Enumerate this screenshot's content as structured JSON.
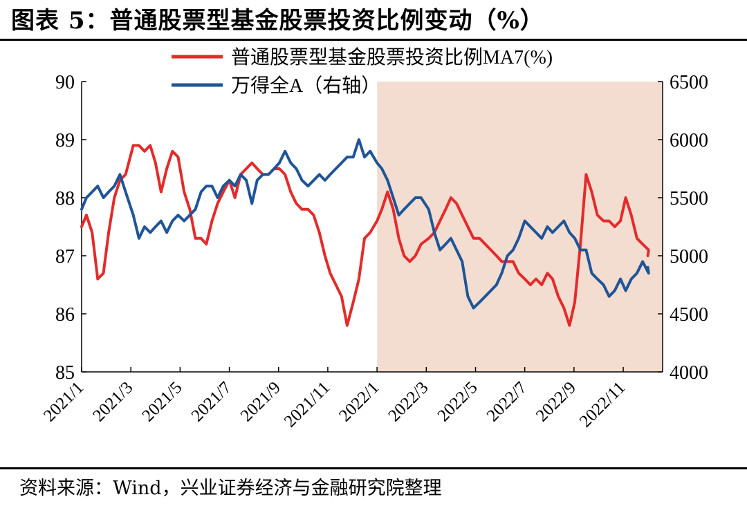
{
  "figure_title": "图表 5：普通股票型基金股票投资比例变动（%）",
  "source_note": "资料来源：Wind，兴业证券经济与金融研究院整理",
  "colors": {
    "fund_ratio": "#e32b2b",
    "wind_a": "#1f5598",
    "highlight": "#f3ddd0"
  },
  "chart_data": {
    "type": "line",
    "title": "普通股票型基金股票投资比例变动（%）",
    "x_ticks": [
      "2021/1",
      "2021/3",
      "2021/5",
      "2021/7",
      "2021/9",
      "2021/11",
      "2022/1",
      "2022/3",
      "2022/5",
      "2022/7",
      "2022/9",
      "2022/11"
    ],
    "x_range": [
      "2021/1",
      "2022/12"
    ],
    "y_left": {
      "range": [
        85,
        90
      ],
      "ticks": [
        "85",
        "86",
        "87",
        "88",
        "89",
        "90"
      ]
    },
    "y_right": {
      "range": [
        4000,
        6500
      ],
      "ticks": [
        "4000",
        "4500",
        "5000",
        "5500",
        "6000",
        "6500"
      ]
    },
    "shaded_region": {
      "from": "2022/1",
      "to": "2022/12"
    },
    "legend_position": "top-center",
    "series": [
      {
        "name": "普通股票型基金股票投资比例MA7(%)",
        "axis": "left",
        "color_key": "fund_ratio",
        "points": [
          [
            "2021/1",
            87.5
          ],
          [
            "2021/1/7",
            87.7
          ],
          [
            "2021/1/14",
            87.4
          ],
          [
            "2021/1/21",
            86.6
          ],
          [
            "2021/1/28",
            86.7
          ],
          [
            "2021/2/4",
            87.4
          ],
          [
            "2021/2/11",
            88.0
          ],
          [
            "2021/2/18",
            88.3
          ],
          [
            "2021/2/25",
            88.4
          ],
          [
            "2021/3/4",
            88.9
          ],
          [
            "2021/3/11",
            88.9
          ],
          [
            "2021/3/18",
            88.8
          ],
          [
            "2021/3/25",
            88.9
          ],
          [
            "2021/4/1",
            88.6
          ],
          [
            "2021/4/8",
            88.1
          ],
          [
            "2021/4/15",
            88.5
          ],
          [
            "2021/4/22",
            88.8
          ],
          [
            "2021/4/29",
            88.7
          ],
          [
            "2021/5/6",
            88.1
          ],
          [
            "2021/5/13",
            87.8
          ],
          [
            "2021/5/20",
            87.3
          ],
          [
            "2021/5/27",
            87.3
          ],
          [
            "2021/6/3",
            87.2
          ],
          [
            "2021/6/10",
            87.6
          ],
          [
            "2021/6/17",
            87.9
          ],
          [
            "2021/6/24",
            88.1
          ],
          [
            "2021/7/1",
            88.3
          ],
          [
            "2021/7/8",
            88.0
          ],
          [
            "2021/7/15",
            88.4
          ],
          [
            "2021/7/22",
            88.5
          ],
          [
            "2021/7/29",
            88.6
          ],
          [
            "2021/8/5",
            88.5
          ],
          [
            "2021/8/12",
            88.4
          ],
          [
            "2021/8/19",
            88.4
          ],
          [
            "2021/8/26",
            88.5
          ],
          [
            "2021/9/2",
            88.5
          ],
          [
            "2021/9/9",
            88.4
          ],
          [
            "2021/9/16",
            88.1
          ],
          [
            "2021/9/23",
            87.9
          ],
          [
            "2021/9/30",
            87.8
          ],
          [
            "2021/10/7",
            87.8
          ],
          [
            "2021/10/14",
            87.7
          ],
          [
            "2021/10/21",
            87.4
          ],
          [
            "2021/10/28",
            87.0
          ],
          [
            "2021/11/4",
            86.7
          ],
          [
            "2021/11/11",
            86.5
          ],
          [
            "2021/11/18",
            86.3
          ],
          [
            "2021/11/25",
            85.8
          ],
          [
            "2021/12/2",
            86.2
          ],
          [
            "2021/12/9",
            86.6
          ],
          [
            "2021/12/16",
            87.3
          ],
          [
            "2021/12/23",
            87.4
          ],
          [
            "2022/1",
            87.6
          ],
          [
            "2022/1/7",
            87.8
          ],
          [
            "2022/1/14",
            88.1
          ],
          [
            "2022/1/21",
            87.8
          ],
          [
            "2022/1/28",
            87.3
          ],
          [
            "2022/2/4",
            87.0
          ],
          [
            "2022/2/11",
            86.9
          ],
          [
            "2022/2/18",
            87.0
          ],
          [
            "2022/2/25",
            87.2
          ],
          [
            "2022/3/4",
            87.3
          ],
          [
            "2022/3/11",
            87.4
          ],
          [
            "2022/3/18",
            87.6
          ],
          [
            "2022/3/25",
            87.8
          ],
          [
            "2022/4/1",
            88.0
          ],
          [
            "2022/4/8",
            87.9
          ],
          [
            "2022/4/15",
            87.7
          ],
          [
            "2022/4/22",
            87.5
          ],
          [
            "2022/4/29",
            87.3
          ],
          [
            "2022/5/6",
            87.3
          ],
          [
            "2022/5/13",
            87.2
          ],
          [
            "2022/5/20",
            87.1
          ],
          [
            "2022/5/27",
            87.0
          ],
          [
            "2022/6/3",
            86.9
          ],
          [
            "2022/6/10",
            86.9
          ],
          [
            "2022/6/17",
            86.9
          ],
          [
            "2022/6/24",
            86.7
          ],
          [
            "2022/7/1",
            86.6
          ],
          [
            "2022/7/8",
            86.5
          ],
          [
            "2022/7/15",
            86.6
          ],
          [
            "2022/7/22",
            86.5
          ],
          [
            "2022/7/29",
            86.7
          ],
          [
            "2022/8/5",
            86.6
          ],
          [
            "2022/8/12",
            86.3
          ],
          [
            "2022/8/19",
            86.1
          ],
          [
            "2022/8/26",
            85.8
          ],
          [
            "2022/9/2",
            86.2
          ],
          [
            "2022/9/9",
            87.2
          ],
          [
            "2022/9/16",
            88.4
          ],
          [
            "2022/9/23",
            88.1
          ],
          [
            "2022/9/30",
            87.7
          ],
          [
            "2022/10/7",
            87.6
          ],
          [
            "2022/10/14",
            87.6
          ],
          [
            "2022/10/21",
            87.5
          ],
          [
            "2022/10/28",
            87.6
          ],
          [
            "2022/11/4",
            88.0
          ],
          [
            "2022/11/11",
            87.7
          ],
          [
            "2022/11/18",
            87.3
          ],
          [
            "2022/11/25",
            87.2
          ],
          [
            "2022/12/2",
            87.1
          ],
          [
            "2022/12",
            87.0
          ]
        ]
      },
      {
        "name": "万得全A（右轴）",
        "axis": "right",
        "color_key": "wind_a",
        "points": [
          [
            "2021/1",
            5400
          ],
          [
            "2021/1/7",
            5500
          ],
          [
            "2021/1/14",
            5550
          ],
          [
            "2021/1/21",
            5600
          ],
          [
            "2021/1/28",
            5500
          ],
          [
            "2021/2/4",
            5550
          ],
          [
            "2021/2/11",
            5600
          ],
          [
            "2021/2/18",
            5700
          ],
          [
            "2021/2/25",
            5550
          ],
          [
            "2021/3/4",
            5350
          ],
          [
            "2021/3/11",
            5150
          ],
          [
            "2021/3/18",
            5250
          ],
          [
            "2021/3/25",
            5200
          ],
          [
            "2021/4/1",
            5250
          ],
          [
            "2021/4/8",
            5300
          ],
          [
            "2021/4/15",
            5200
          ],
          [
            "2021/4/22",
            5300
          ],
          [
            "2021/4/29",
            5350
          ],
          [
            "2021/5/6",
            5300
          ],
          [
            "2021/5/13",
            5350
          ],
          [
            "2021/5/20",
            5400
          ],
          [
            "2021/5/27",
            5550
          ],
          [
            "2021/6/3",
            5600
          ],
          [
            "2021/6/10",
            5600
          ],
          [
            "2021/6/17",
            5500
          ],
          [
            "2021/6/24",
            5600
          ],
          [
            "2021/7/1",
            5650
          ],
          [
            "2021/7/8",
            5600
          ],
          [
            "2021/7/15",
            5700
          ],
          [
            "2021/7/22",
            5650
          ],
          [
            "2021/7/29",
            5450
          ],
          [
            "2021/8/5",
            5650
          ],
          [
            "2021/8/12",
            5700
          ],
          [
            "2021/8/19",
            5700
          ],
          [
            "2021/8/26",
            5750
          ],
          [
            "2021/9/2",
            5800
          ],
          [
            "2021/9/9",
            5900
          ],
          [
            "2021/9/16",
            5800
          ],
          [
            "2021/9/23",
            5750
          ],
          [
            "2021/9/30",
            5650
          ],
          [
            "2021/10/7",
            5600
          ],
          [
            "2021/10/14",
            5650
          ],
          [
            "2021/10/21",
            5700
          ],
          [
            "2021/10/28",
            5650
          ],
          [
            "2021/11/4",
            5700
          ],
          [
            "2021/11/11",
            5750
          ],
          [
            "2021/11/18",
            5800
          ],
          [
            "2021/11/25",
            5850
          ],
          [
            "2021/12/2",
            5850
          ],
          [
            "2021/12/9",
            6000
          ],
          [
            "2021/12/16",
            5850
          ],
          [
            "2021/12/23",
            5900
          ],
          [
            "2022/1",
            5800
          ],
          [
            "2022/1/7",
            5750
          ],
          [
            "2022/1/14",
            5650
          ],
          [
            "2022/1/21",
            5500
          ],
          [
            "2022/1/28",
            5350
          ],
          [
            "2022/2/4",
            5400
          ],
          [
            "2022/2/11",
            5450
          ],
          [
            "2022/2/18",
            5500
          ],
          [
            "2022/2/25",
            5500
          ],
          [
            "2022/3/4",
            5400
          ],
          [
            "2022/3/11",
            5200
          ],
          [
            "2022/3/18",
            5050
          ],
          [
            "2022/3/25",
            5100
          ],
          [
            "2022/4/1",
            5150
          ],
          [
            "2022/4/8",
            5050
          ],
          [
            "2022/4/15",
            4950
          ],
          [
            "2022/4/22",
            4650
          ],
          [
            "2022/4/29",
            4550
          ],
          [
            "2022/5/6",
            4600
          ],
          [
            "2022/5/13",
            4650
          ],
          [
            "2022/5/20",
            4700
          ],
          [
            "2022/5/27",
            4750
          ],
          [
            "2022/6/3",
            4850
          ],
          [
            "2022/6/10",
            5000
          ],
          [
            "2022/6/17",
            5050
          ],
          [
            "2022/6/24",
            5150
          ],
          [
            "2022/7/1",
            5300
          ],
          [
            "2022/7/8",
            5250
          ],
          [
            "2022/7/15",
            5200
          ],
          [
            "2022/7/22",
            5150
          ],
          [
            "2022/7/29",
            5250
          ],
          [
            "2022/8/5",
            5200
          ],
          [
            "2022/8/12",
            5250
          ],
          [
            "2022/8/19",
            5300
          ],
          [
            "2022/8/26",
            5200
          ],
          [
            "2022/9/2",
            5150
          ],
          [
            "2022/9/9",
            5050
          ],
          [
            "2022/9/16",
            5050
          ],
          [
            "2022/9/23",
            4850
          ],
          [
            "2022/9/30",
            4800
          ],
          [
            "2022/10/7",
            4750
          ],
          [
            "2022/10/14",
            4650
          ],
          [
            "2022/10/21",
            4700
          ],
          [
            "2022/10/28",
            4800
          ],
          [
            "2022/11/4",
            4700
          ],
          [
            "2022/11/11",
            4800
          ],
          [
            "2022/11/18",
            4850
          ],
          [
            "2022/11/25",
            4950
          ],
          [
            "2022/12/2",
            4850
          ],
          [
            "2022/12",
            4900
          ]
        ]
      }
    ]
  }
}
